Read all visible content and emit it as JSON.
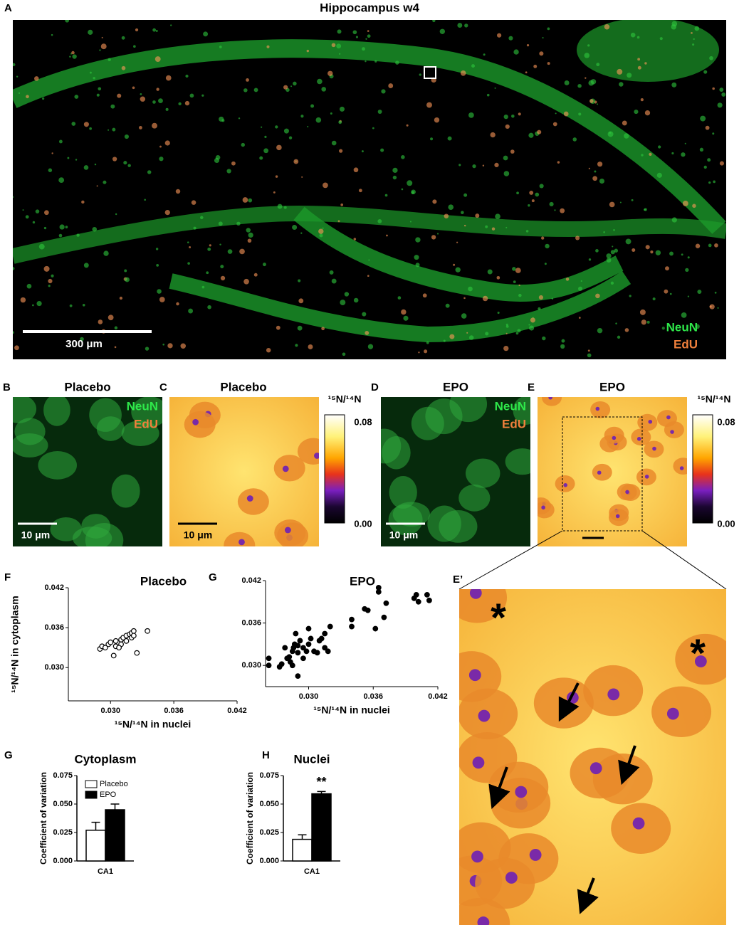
{
  "panel_a": {
    "label": "A",
    "title": "Hippocampus w4",
    "scale_bar": "300  μm",
    "legend": [
      "NeuN",
      "EdU"
    ]
  },
  "panel_b": {
    "label": "B",
    "title": "Placebo",
    "legend": [
      "NeuN",
      "EdU"
    ],
    "scale_bar": "10  μm"
  },
  "panel_c": {
    "label": "C",
    "title": "Placebo",
    "scale_bar": "10  μm",
    "colorbar": {
      "title": "¹⁵N/¹⁴N",
      "max": "0.08",
      "min": "0.00"
    }
  },
  "panel_d": {
    "label": "D",
    "title": "EPO",
    "legend": [
      "NeuN",
      "EdU"
    ],
    "scale_bar": "10  μm"
  },
  "panel_e": {
    "label": "E",
    "title": "EPO",
    "colorbar": {
      "title": "¹⁵N/¹⁴N",
      "max": "0.08",
      "min": "0.00"
    }
  },
  "panel_e_prime": {
    "label": "E’",
    "annotations": [
      "*",
      "*"
    ]
  },
  "chart_data": [
    {
      "type": "scatter",
      "panel_label": "F",
      "title": "Placebo",
      "marker": "open",
      "color": "#000000",
      "x_label": "¹⁵N/¹⁴N in nuclei",
      "y_label": "¹⁵N/¹⁴N in cytoplasm",
      "xlim": [
        0.026,
        0.042
      ],
      "ylim": [
        0.025,
        0.042
      ],
      "xticks": [
        {
          "value": 0.03,
          "label": "0.030"
        },
        {
          "value": 0.036,
          "label": "0.036"
        },
        {
          "value": 0.042,
          "label": "0.042"
        }
      ],
      "yticks": [
        {
          "value": 0.03,
          "label": "0.030"
        },
        {
          "value": 0.036,
          "label": "0.036"
        },
        {
          "value": 0.042,
          "label": "0.042"
        }
      ],
      "x": [
        0.029,
        0.0292,
        0.0295,
        0.0298,
        0.03,
        0.0305,
        0.0305,
        0.031,
        0.031,
        0.0312,
        0.0315,
        0.0318,
        0.032,
        0.032,
        0.0322,
        0.0325,
        0.0335,
        0.0303,
        0.0308,
        0.0315,
        0.0322
      ],
      "y": [
        0.0328,
        0.0332,
        0.033,
        0.0335,
        0.0338,
        0.034,
        0.0332,
        0.0342,
        0.0335,
        0.0345,
        0.0348,
        0.035,
        0.0352,
        0.0345,
        0.0355,
        0.0322,
        0.0355,
        0.0318,
        0.033,
        0.034,
        0.0348
      ]
    },
    {
      "type": "scatter",
      "panel_label": "G",
      "title": "EPO",
      "marker": "filled",
      "color": "#000000",
      "x_label": "¹⁵N/¹⁴N in nuclei",
      "xlim": [
        0.026,
        0.042
      ],
      "ylim": [
        0.027,
        0.042
      ],
      "xticks": [
        {
          "value": 0.03,
          "label": "0.030"
        },
        {
          "value": 0.036,
          "label": "0.036"
        },
        {
          "value": 0.042,
          "label": "0.042"
        }
      ],
      "yticks": [
        {
          "value": 0.03,
          "label": "0.030"
        },
        {
          "value": 0.036,
          "label": "0.036"
        },
        {
          "value": 0.042,
          "label": "0.042"
        }
      ],
      "x": [
        0.0263,
        0.0263,
        0.0273,
        0.0275,
        0.0278,
        0.028,
        0.0282,
        0.0283,
        0.0285,
        0.0285,
        0.0287,
        0.0288,
        0.029,
        0.029,
        0.0292,
        0.0295,
        0.0295,
        0.0298,
        0.03,
        0.03,
        0.0302,
        0.0305,
        0.0308,
        0.031,
        0.0312,
        0.0315,
        0.0315,
        0.0318,
        0.032,
        0.034,
        0.034,
        0.0352,
        0.0355,
        0.0362,
        0.0365,
        0.0365,
        0.037,
        0.0372,
        0.0398,
        0.04,
        0.0402,
        0.041,
        0.0412,
        0.029,
        0.0286
      ],
      "y": [
        0.031,
        0.03,
        0.0298,
        0.0302,
        0.0325,
        0.031,
        0.0312,
        0.0305,
        0.032,
        0.03,
        0.033,
        0.0345,
        0.0318,
        0.0285,
        0.0335,
        0.0325,
        0.031,
        0.032,
        0.033,
        0.0352,
        0.0338,
        0.032,
        0.0318,
        0.0335,
        0.0338,
        0.0345,
        0.0325,
        0.032,
        0.0355,
        0.0365,
        0.0355,
        0.038,
        0.0378,
        0.0352,
        0.041,
        0.0404,
        0.0368,
        0.0388,
        0.0395,
        0.04,
        0.039,
        0.04,
        0.0392,
        0.0328,
        0.0325
      ]
    },
    {
      "type": "bar",
      "panel_label": "G",
      "title": "Cytoplasm",
      "y_label": "Coefficient of variation",
      "legend": "top-left",
      "categories": [
        "CA1"
      ],
      "ylim": [
        0,
        0.075
      ],
      "yticks": [
        {
          "value": 0,
          "label": "0.000"
        },
        {
          "value": 0.025,
          "label": "0.025"
        },
        {
          "value": 0.05,
          "label": "0.050"
        },
        {
          "value": 0.075,
          "label": "0.075"
        }
      ],
      "series": [
        {
          "name": "Placebo",
          "color": "#ffffff",
          "values": [
            0.027
          ],
          "errors": [
            0.007
          ]
        },
        {
          "name": "EPO",
          "color": "#000000",
          "values": [
            0.045
          ],
          "errors": [
            0.005
          ]
        }
      ]
    },
    {
      "type": "bar",
      "panel_label": "H",
      "title": "Nuclei",
      "y_label": "Coefficient of variation",
      "categories": [
        "CA1"
      ],
      "ylim": [
        0,
        0.075
      ],
      "annotation": "**",
      "yticks": [
        {
          "value": 0,
          "label": "0.000"
        },
        {
          "value": 0.025,
          "label": "0.025"
        },
        {
          "value": 0.05,
          "label": "0.050"
        },
        {
          "value": 0.075,
          "label": "0.075"
        }
      ],
      "series": [
        {
          "name": "Placebo",
          "color": "#ffffff",
          "values": [
            0.019
          ],
          "errors": [
            0.004
          ]
        },
        {
          "name": "EPO",
          "color": "#000000",
          "values": [
            0.059
          ],
          "errors": [
            0.002
          ]
        }
      ]
    }
  ]
}
